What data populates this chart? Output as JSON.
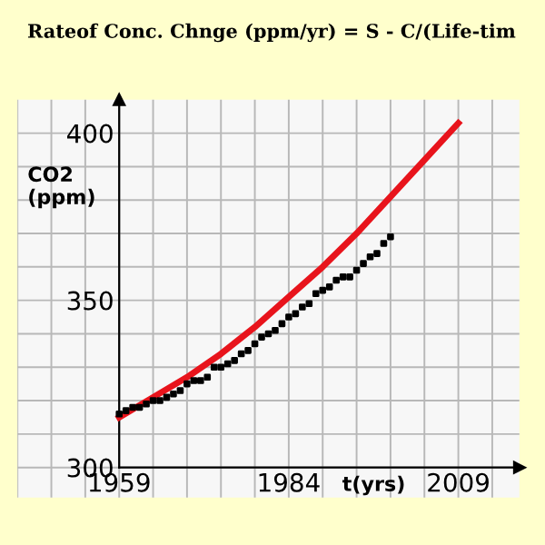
{
  "chart_data": {
    "type": "line",
    "title": "Rateof Conc. Chnge (ppm/yr) = S - C/(Life-tim",
    "xlabel": "t(yrs)",
    "ylabel": "CO2\n(ppm)",
    "xlim": [
      1944,
      2018
    ],
    "ylim": [
      291,
      410
    ],
    "xticks": [
      {
        "value": 1944,
        "label": null
      },
      {
        "value": 1949,
        "label": null
      },
      {
        "value": 1954,
        "label": null
      },
      1959,
      {
        "value": 1964,
        "label": null
      },
      {
        "value": 1969,
        "label": null
      },
      {
        "value": 1974,
        "label": null
      },
      {
        "value": 1979,
        "label": null
      },
      1984,
      {
        "value": 1989,
        "label": null
      },
      {
        "value": 1994,
        "label": null
      },
      {
        "value": 1999,
        "label": null
      },
      {
        "value": 2004,
        "label": null
      },
      2009,
      {
        "value": 2014,
        "label": null
      }
    ],
    "yticks": [
      300,
      {
        "value": 310,
        "label": null
      },
      {
        "value": 320,
        "label": null
      },
      {
        "value": 330,
        "label": null
      },
      {
        "value": 340,
        "label": null
      },
      350,
      {
        "value": 360,
        "label": null
      },
      {
        "value": 370,
        "label": null
      },
      {
        "value": 380,
        "label": null
      },
      {
        "value": 390,
        "label": null
      },
      400
    ],
    "grid": true,
    "marker": "none",
    "line_style": "solid",
    "series": [
      {
        "color": "#e8141c",
        "x": [
          1959,
          1964,
          1969,
          1974,
          1979,
          1984,
          1989,
          1994,
          1999,
          2004,
          2009
        ],
        "values": [
          315,
          321,
          327,
          334,
          342,
          351,
          360,
          370,
          381,
          392,
          403
        ]
      },
      {
        "type": "scatter",
        "marker": "square",
        "color": "#000000",
        "x": [
          1959,
          1960,
          1961,
          1962,
          1963,
          1964,
          1965,
          1966,
          1967,
          1968,
          1969,
          1970,
          1971,
          1972,
          1973,
          1974,
          1975,
          1976,
          1977,
          1978,
          1979,
          1980,
          1981,
          1982,
          1983,
          1984,
          1985,
          1986,
          1987,
          1988,
          1989,
          1990,
          1991,
          1992,
          1993,
          1994,
          1995,
          1996,
          1997,
          1998,
          1999
        ],
        "values": [
          316,
          317,
          318,
          318,
          319,
          320,
          320,
          321,
          322,
          323,
          325,
          326,
          326,
          327,
          330,
          330,
          331,
          332,
          334,
          335,
          337,
          339,
          340,
          341,
          343,
          345,
          346,
          348,
          349,
          352,
          353,
          354,
          356,
          357,
          357,
          359,
          361,
          363,
          364,
          367,
          369
        ]
      }
    ]
  }
}
